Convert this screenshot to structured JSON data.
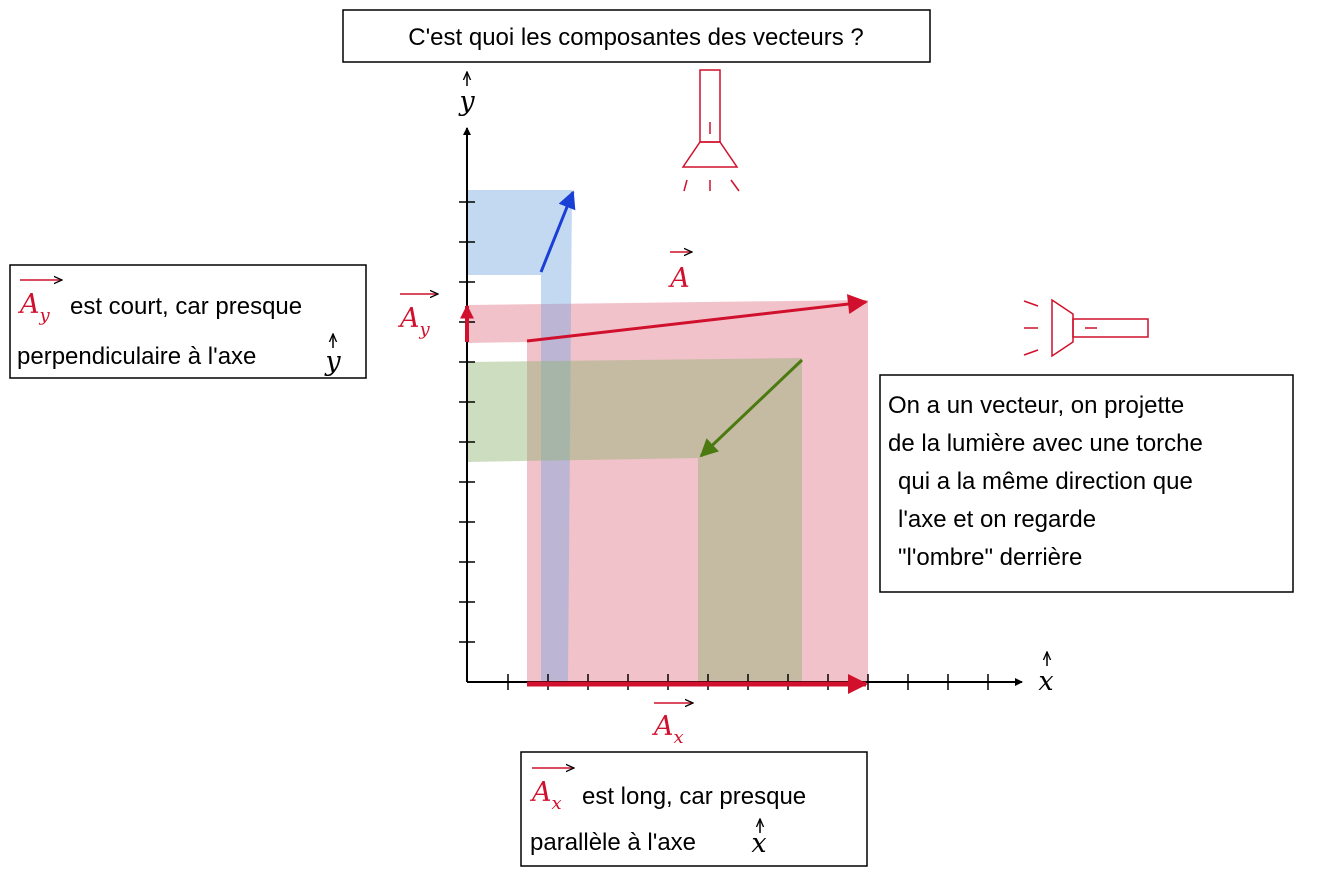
{
  "title": "C'est quoi les composantes des vecteurs ?",
  "axes": {
    "x": "x",
    "y": "y"
  },
  "vectors": {
    "main": "A",
    "x_component": {
      "base": "A",
      "sub": "x"
    },
    "y_component": {
      "base": "A",
      "sub": "y"
    }
  },
  "notes": {
    "left": {
      "vector": {
        "base": "A",
        "sub": "y"
      },
      "line1": "est court, car presque",
      "line2": "perpendiculaire à l'axe",
      "axis": "y"
    },
    "bottom": {
      "vector": {
        "base": "A",
        "sub": "x"
      },
      "line1": "est long, car presque",
      "line2": "parallèle à l'axe",
      "axis": "x"
    }
  },
  "explanation": [
    "On a un vecteur, on projette",
    "de la lumière avec une torche",
    "qui a la même direction que",
    "l'axe et on regarde",
    "\"l'ombre\" derrière"
  ]
}
